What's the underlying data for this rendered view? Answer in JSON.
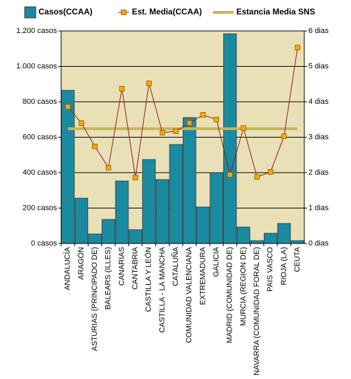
{
  "chart_data": {
    "type": "bar-line",
    "categories": [
      "ANDALUCÍA",
      "ARAGÓN",
      "ASTURIAS (PRINCIPADO DE)",
      "BALEARS (ILLES)",
      "CANARIAS",
      "CANTABRIA",
      "CASTILLA Y LEÓN",
      "CASTILLA - LA MANCHA",
      "CATALUÑA",
      "COMUNIDAD VALENCIANA",
      "EXTREMADURA",
      "GALICIA",
      "MADRID (COMUNIDAD DE)",
      "MURCIA (REGION DE)",
      "NAVARRA (COMUNIDAD FORAL DE)",
      "PAIS VASCO",
      "RIOJA (LA)",
      "CEUTA"
    ],
    "series": [
      {
        "name": "Casos(CCAA)",
        "color": "#1a8aa0",
        "kind": "bar",
        "axis": "y",
        "values": [
          865,
          256,
          54,
          136,
          353,
          78,
          474,
          361,
          559,
          711,
          206,
          400,
          1184,
          93,
          16,
          58,
          113,
          16
        ]
      },
      {
        "name": "Est. Media(CCAA)",
        "color": "#8b1a1a",
        "marker_color": "#f7a800",
        "kind": "line",
        "axis": "y2",
        "values": [
          3.86,
          3.4,
          2.74,
          2.14,
          4.37,
          1.86,
          4.52,
          3.13,
          3.17,
          3.4,
          3.63,
          3.5,
          1.94,
          3.26,
          1.88,
          2.02,
          3.03,
          5.53
        ]
      },
      {
        "name": "Estancia Media SNS",
        "color": "#c8b45a",
        "kind": "flat",
        "axis": "y2",
        "values": [
          3.24,
          3.24,
          3.24,
          3.24,
          3.24,
          3.24,
          3.24,
          3.24,
          3.24,
          3.24,
          3.24,
          3.24,
          3.24,
          3.24,
          3.24,
          3.24,
          3.24,
          3.24
        ]
      }
    ],
    "ylim": [
      0,
      1200
    ],
    "yticks": [
      {
        "value": 0,
        "label": "0 casos"
      },
      {
        "value": 200,
        "label": "200 casos"
      },
      {
        "value": 400,
        "label": "400 casos"
      },
      {
        "value": 600,
        "label": "600 casos"
      },
      {
        "value": 800,
        "label": "800 casos"
      },
      {
        "value": 1000,
        "label": "1.000 casos"
      },
      {
        "value": 1200,
        "label": "1.200 casos"
      }
    ],
    "y2lim": [
      0,
      6
    ],
    "y2ticks": [
      {
        "value": 0,
        "label": "0 dias"
      },
      {
        "value": 1,
        "label": "1 dias"
      },
      {
        "value": 2,
        "label": "2 dias"
      },
      {
        "value": 3,
        "label": "3 dias"
      },
      {
        "value": 4,
        "label": "4 dias"
      },
      {
        "value": 5,
        "label": "5 dias"
      },
      {
        "value": 6,
        "label": "6 dias"
      }
    ],
    "grid": true,
    "background": "#eae0b8"
  }
}
